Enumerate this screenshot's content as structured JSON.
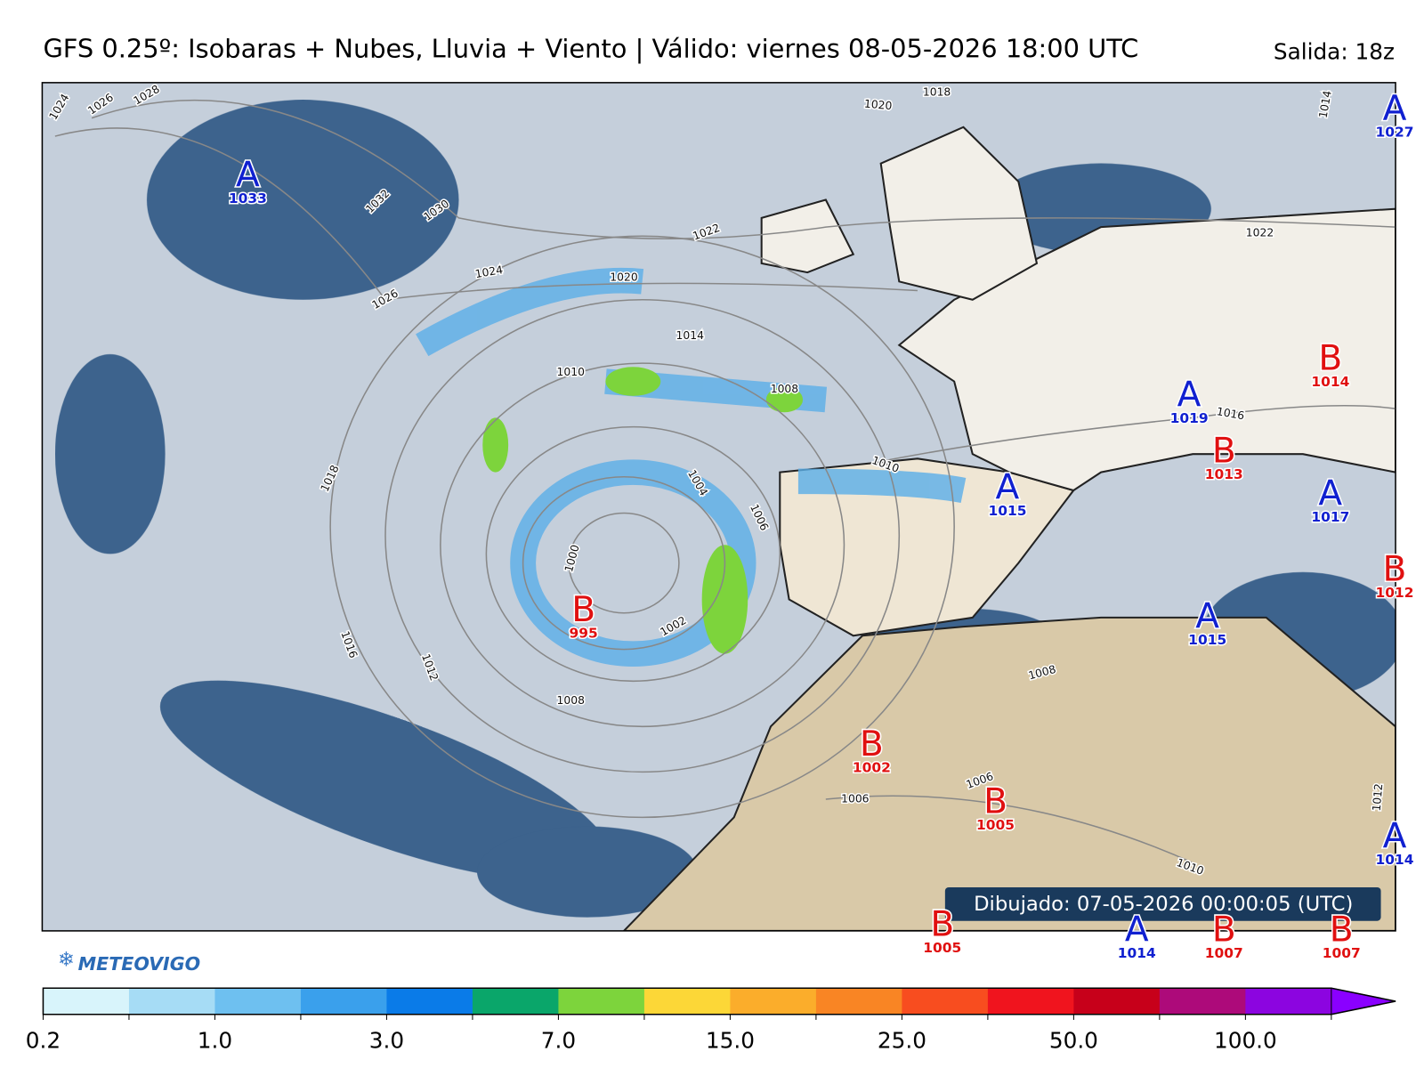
{
  "header": {
    "title": "GFS 0.25º: Isobaras + Nubes, Lluvia + Viento | Válido: viernes 08-05-2026 18:00 UTC",
    "run": "Salida: 18z"
  },
  "centers": [
    {
      "letter": "A",
      "value": "1033"
    },
    {
      "letter": "A",
      "value": "1027"
    },
    {
      "letter": "B",
      "value": "1014"
    },
    {
      "letter": "A",
      "value": "1019"
    },
    {
      "letter": "B",
      "value": "1013"
    },
    {
      "letter": "A",
      "value": "1015"
    },
    {
      "letter": "A",
      "value": "1017"
    },
    {
      "letter": "B",
      "value": "1012"
    },
    {
      "letter": "B",
      "value": "995"
    },
    {
      "letter": "A",
      "value": "1015"
    },
    {
      "letter": "B",
      "value": "1002"
    },
    {
      "letter": "B",
      "value": "1005"
    },
    {
      "letter": "A",
      "value": "1014"
    },
    {
      "letter": "B",
      "value": "1005"
    },
    {
      "letter": "A",
      "value": "1014"
    },
    {
      "letter": "B",
      "value": "1007"
    },
    {
      "letter": "B",
      "value": "1007"
    }
  ],
  "isobar_labels": [
    "1024",
    "1026",
    "1028",
    "1032",
    "1030",
    "1022",
    "1024",
    "1020",
    "1026",
    "1014",
    "1010",
    "1008",
    "1018",
    "1004",
    "1006",
    "1000",
    "1002",
    "1016",
    "1012",
    "1008",
    "1020",
    "1018",
    "1022",
    "1016",
    "1010",
    "1008",
    "1006",
    "1006",
    "1010",
    "1012",
    "1014"
  ],
  "drawn": "Dibujado: 07-05-2026 00:00:05 (UTC)",
  "logo": "METEOVIGO",
  "colorbar": {
    "labels": [
      "0.2",
      "1.0",
      "3.0",
      "7.0",
      "15.0",
      "25.0",
      "50.0",
      "100.0"
    ],
    "colors": [
      "#d8f4fb",
      "#a6dcf5",
      "#6ec0f0",
      "#3aa0ec",
      "#0a7be8",
      "#0aa66a",
      "#7dd43c",
      "#fcd737",
      "#fbad2b",
      "#f98524",
      "#f84d1f",
      "#f0141e",
      "#c7001a",
      "#ad0a7a",
      "#8c05e0",
      "#8a00ff"
    ]
  }
}
